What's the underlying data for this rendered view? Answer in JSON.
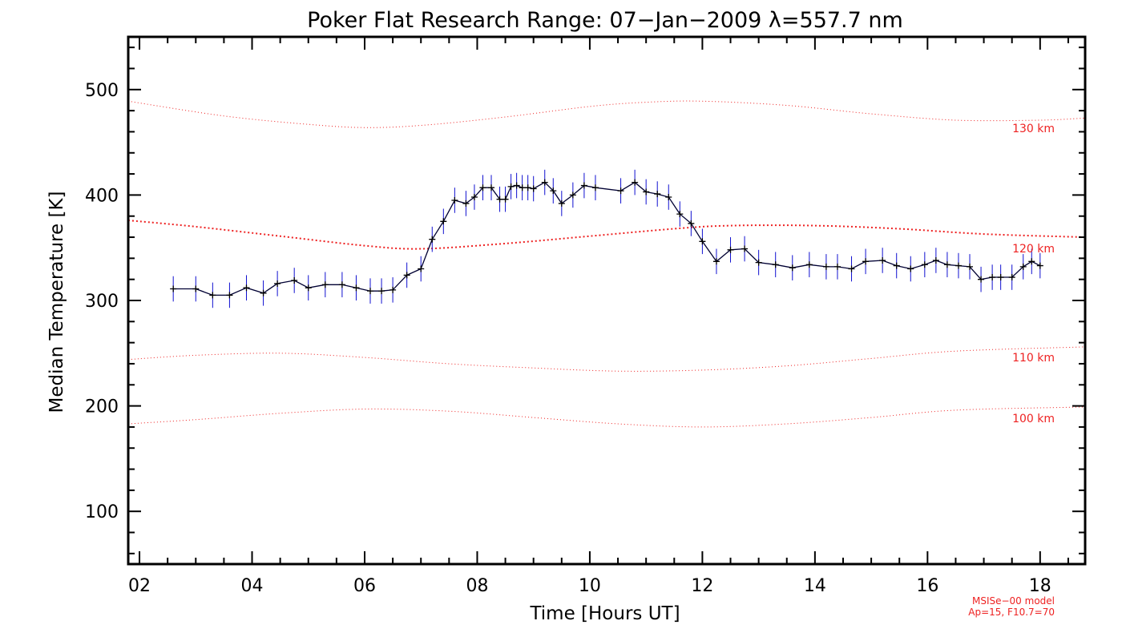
{
  "chart_data": {
    "type": "line",
    "title": "Poker Flat Research Range: 07−Jan−2009 λ=557.7 nm",
    "xlabel": "Time [Hours UT]",
    "ylabel": "Median Temperature [K]",
    "xlim": [
      1.8,
      18.8
    ],
    "ylim": [
      50,
      550
    ],
    "x_ticks": [
      2,
      4,
      6,
      8,
      10,
      12,
      14,
      16,
      18
    ],
    "x_tick_labels": [
      "02",
      "04",
      "06",
      "08",
      "10",
      "12",
      "14",
      "16",
      "18"
    ],
    "y_ticks": [
      100,
      200,
      300,
      400,
      500
    ],
    "y_tick_labels": [
      "100",
      "200",
      "300",
      "400",
      "500"
    ],
    "grid": false,
    "colors": {
      "data_line": "#000033",
      "error_bar": "#1010d0",
      "model": "#ee2222",
      "axes": "#000000"
    },
    "series": [
      {
        "name": "Median Temperature",
        "error": 12,
        "points": [
          [
            2.6,
            311
          ],
          [
            3.0,
            311
          ],
          [
            3.3,
            305
          ],
          [
            3.6,
            305
          ],
          [
            3.9,
            312
          ],
          [
            4.2,
            307
          ],
          [
            4.45,
            316
          ],
          [
            4.75,
            319
          ],
          [
            5.0,
            312
          ],
          [
            5.3,
            315
          ],
          [
            5.6,
            315
          ],
          [
            5.85,
            312
          ],
          [
            6.1,
            309
          ],
          [
            6.3,
            309
          ],
          [
            6.5,
            310
          ],
          [
            6.75,
            324
          ],
          [
            7.0,
            330
          ],
          [
            7.2,
            358
          ],
          [
            7.4,
            375
          ],
          [
            7.6,
            395
          ],
          [
            7.8,
            392
          ],
          [
            7.95,
            398
          ],
          [
            8.1,
            407
          ],
          [
            8.25,
            407
          ],
          [
            8.4,
            396
          ],
          [
            8.5,
            396
          ],
          [
            8.6,
            408
          ],
          [
            8.7,
            409
          ],
          [
            8.8,
            407
          ],
          [
            8.9,
            407
          ],
          [
            9.0,
            406
          ],
          [
            9.2,
            412
          ],
          [
            9.35,
            404
          ],
          [
            9.5,
            392
          ],
          [
            9.7,
            400
          ],
          [
            9.9,
            409
          ],
          [
            10.1,
            407
          ],
          [
            10.55,
            404
          ],
          [
            10.8,
            412
          ],
          [
            11.0,
            403
          ],
          [
            11.2,
            401
          ],
          [
            11.4,
            398
          ],
          [
            11.6,
            382
          ],
          [
            11.8,
            373
          ],
          [
            12.0,
            356
          ],
          [
            12.25,
            337
          ],
          [
            12.5,
            348
          ],
          [
            12.75,
            349
          ],
          [
            13.0,
            336
          ],
          [
            13.3,
            334
          ],
          [
            13.6,
            331
          ],
          [
            13.9,
            334
          ],
          [
            14.2,
            332
          ],
          [
            14.4,
            332
          ],
          [
            14.65,
            330
          ],
          [
            14.9,
            337
          ],
          [
            15.2,
            338
          ],
          [
            15.45,
            333
          ],
          [
            15.7,
            330
          ],
          [
            15.95,
            334
          ],
          [
            16.15,
            338
          ],
          [
            16.35,
            334
          ],
          [
            16.55,
            333
          ],
          [
            16.75,
            332
          ],
          [
            16.95,
            320
          ],
          [
            17.15,
            322
          ],
          [
            17.3,
            322
          ],
          [
            17.5,
            322
          ],
          [
            17.7,
            332
          ],
          [
            17.85,
            337
          ],
          [
            18.0,
            333
          ]
        ]
      }
    ],
    "model_curves": [
      {
        "label": "130 km",
        "style": "dotted",
        "points": [
          [
            1.8,
            489
          ],
          [
            3.5,
            475
          ],
          [
            5.0,
            467
          ],
          [
            6.0,
            464
          ],
          [
            7.0,
            466
          ],
          [
            8.5,
            474
          ],
          [
            10.0,
            484
          ],
          [
            11.0,
            488
          ],
          [
            12.0,
            489
          ],
          [
            13.5,
            485
          ],
          [
            15.0,
            477
          ],
          [
            16.5,
            471
          ],
          [
            18.0,
            471
          ],
          [
            18.8,
            473
          ]
        ]
      },
      {
        "label": "120 km",
        "style": "dotted-bold",
        "points": [
          [
            1.8,
            376
          ],
          [
            3.0,
            370
          ],
          [
            4.5,
            361
          ],
          [
            6.0,
            352
          ],
          [
            7.0,
            349
          ],
          [
            8.5,
            354
          ],
          [
            10.0,
            361
          ],
          [
            11.5,
            368
          ],
          [
            12.5,
            371
          ],
          [
            14.0,
            371
          ],
          [
            15.5,
            368
          ],
          [
            17.0,
            363
          ],
          [
            18.8,
            360
          ]
        ]
      },
      {
        "label": "110 km",
        "style": "dotted",
        "points": [
          [
            1.8,
            244
          ],
          [
            3.0,
            248
          ],
          [
            4.5,
            250
          ],
          [
            6.0,
            246
          ],
          [
            7.5,
            240
          ],
          [
            9.0,
            236
          ],
          [
            10.5,
            233
          ],
          [
            12.0,
            234
          ],
          [
            13.5,
            238
          ],
          [
            15.0,
            245
          ],
          [
            16.5,
            252
          ],
          [
            18.8,
            256
          ]
        ]
      },
      {
        "label": "100 km",
        "style": "dotted",
        "points": [
          [
            1.8,
            183
          ],
          [
            3.0,
            187
          ],
          [
            4.5,
            193
          ],
          [
            6.0,
            197
          ],
          [
            7.5,
            195
          ],
          [
            9.0,
            189
          ],
          [
            10.5,
            183
          ],
          [
            12.0,
            180
          ],
          [
            13.5,
            183
          ],
          [
            15.0,
            189
          ],
          [
            16.5,
            196
          ],
          [
            18.8,
            199
          ]
        ]
      }
    ],
    "annotations": [
      "MSISe−00 model",
      "Ap=15, F10.7=70"
    ]
  }
}
